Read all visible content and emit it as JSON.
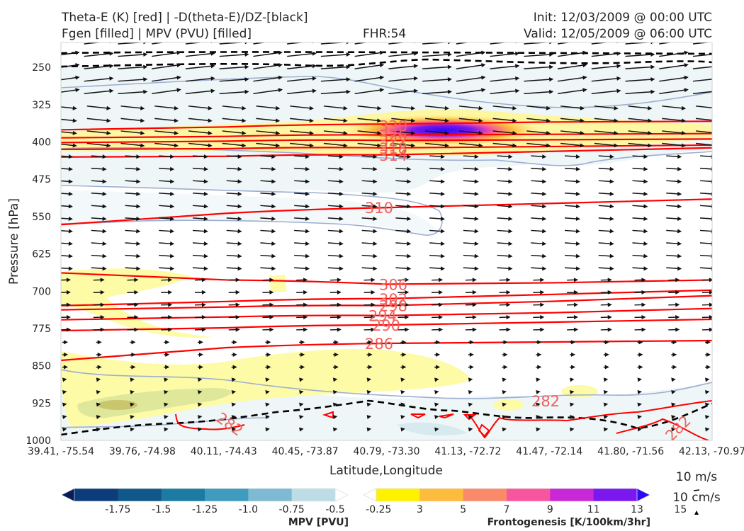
{
  "header": {
    "title_left_1": "Theta-E (K) [red] | -D(theta-E)/DZ-[black]",
    "title_left_2": "Fgen [filled] | MPV (PVU) [filled]",
    "fhr": "FHR:54",
    "init": "Init: 12/03/2009 @ 00:00 UTC",
    "valid": "Valid: 12/05/2009 @ 06:00 UTC"
  },
  "chart_data": {
    "type": "cross-section",
    "xlabel": "Latitude,Longitude",
    "ylabel": "Pressure [hPa]",
    "x_ticks": [
      "39.41, -75.54",
      "39.76, -74.98",
      "40.11, -74.43",
      "40.45, -73.87",
      "40.79, -73.30",
      "41.13, -72.72",
      "41.47, -72.14",
      "41.80, -71.56",
      "42.13, -70.97"
    ],
    "y_ticks": [
      250,
      325,
      400,
      475,
      550,
      625,
      700,
      775,
      850,
      925,
      1000
    ],
    "ylim": [
      1000,
      200
    ],
    "y_scale": "linear-inverted",
    "grid": false,
    "theta_e_contours": [
      {
        "label": "330",
        "p": 367
      },
      {
        "label": "326",
        "p": 386
      },
      {
        "label": "322",
        "p": 397
      },
      {
        "label": "318",
        "p": 412
      },
      {
        "label": "314",
        "p": 426
      },
      {
        "label": "310",
        "p": 532
      },
      {
        "label": "306",
        "p": 686
      },
      {
        "label": "302",
        "p": 715
      },
      {
        "label": "298",
        "p": 729
      },
      {
        "label": "294",
        "p": 749
      },
      {
        "label": "290",
        "p": 768
      },
      {
        "label": "286",
        "p": 805
      },
      {
        "label": "282",
        "p": 931
      },
      {
        "label": "282",
        "p": 966
      },
      {
        "label": "282",
        "p": 975
      }
    ],
    "mpv_colorbar": {
      "title": "MPV [PVU]",
      "ticks": [
        "-1.75",
        "-1.5",
        "-1.25",
        "-1.0",
        "-0.75",
        "-0.5",
        "-0.25"
      ],
      "colors": [
        "#081d58",
        "#0c3c7a",
        "#10578a",
        "#1b7ba3",
        "#3f9cbf",
        "#7ebad3",
        "#bddde6",
        "#ffffff"
      ]
    },
    "fgen_colorbar": {
      "title": "Frontogenesis [K/100km/3hr]",
      "ticks": [
        "3",
        "5",
        "7",
        "9",
        "11",
        "13",
        "15"
      ],
      "colors": [
        "#ffffff",
        "#fff200",
        "#fdbc3c",
        "#fb8a6a",
        "#f7559e",
        "#c828d6",
        "#7a18ef",
        "#2a0af7"
      ]
    },
    "vector_key": {
      "label_1": "10 m/s",
      "label_2": "10 cm/s"
    },
    "colors": {
      "theta_e": "#ff0000",
      "dthetae_dz": "#000000",
      "mpv_outline": "#9daed0"
    }
  }
}
